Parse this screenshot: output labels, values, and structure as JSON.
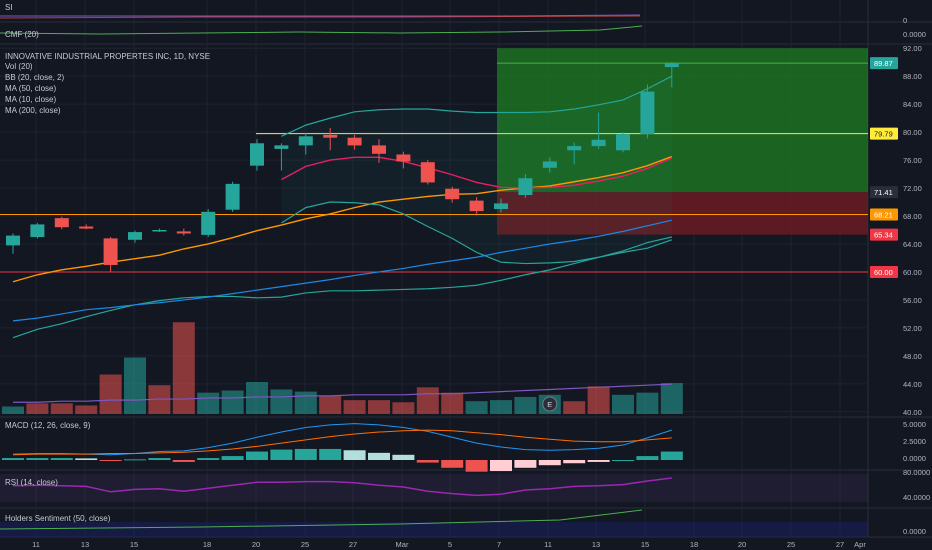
{
  "symbol": "INNOVATIVE INDUSTRIAL PROPERTES INC, 1D, NYSE",
  "indicators": {
    "si": "SI",
    "cmf": "CMF (20)",
    "vol": "Vol (20)",
    "bb": "BB (20, close, 2)",
    "ma50": "MA (50, close)",
    "ma10": "MA (10, close)",
    "ma200": "MA (200, close)",
    "macd": "MACD (12, 26, close, 9)",
    "rsi": "RSI (14, close)",
    "holders": "Holders Sentiment (50, close)"
  },
  "earnings_marker": "E",
  "colors": {
    "background": "#131722",
    "up": "#26a69a",
    "down": "#ef5350",
    "bb_basis": "#e91e63",
    "bb_band": "#26a69a",
    "ma50": "#ff9800",
    "ma10": "#1e88e5",
    "vol_ma": "#7e57c2",
    "profit_zone": "#1e7d22",
    "loss_zone": "#6b1b23",
    "resistance_line": "#ffeb3b",
    "entry_line": "#ff9800",
    "support_line": "#f23645"
  },
  "chart_data": {
    "type": "candlestick",
    "title": "INNOVATIVE INDUSTRIAL PROPERTES INC, 1D, NYSE",
    "x_tick_labels": [
      "11",
      "13",
      "15",
      "18",
      "20",
      "25",
      "27",
      "Mar",
      "5",
      "7",
      "11",
      "13",
      "15",
      "18",
      "20",
      "25",
      "27",
      "Apr"
    ],
    "y_ticks": [
      40,
      44,
      48,
      52,
      56,
      60,
      64,
      68,
      72,
      76,
      80,
      84,
      88,
      92
    ],
    "ylim": [
      39.4,
      92.6
    ],
    "candles": [
      {
        "o": 63.8,
        "h": 65.5,
        "l": 62.6,
        "c": 65.2
      },
      {
        "o": 65.0,
        "h": 67.0,
        "l": 64.8,
        "c": 66.8
      },
      {
        "o": 67.7,
        "h": 67.9,
        "l": 66.1,
        "c": 66.4
      },
      {
        "o": 66.5,
        "h": 66.8,
        "l": 66.1,
        "c": 66.2
      },
      {
        "o": 64.8,
        "h": 65.0,
        "l": 60.0,
        "c": 61.0
      },
      {
        "o": 64.6,
        "h": 65.9,
        "l": 64.2,
        "c": 65.7
      },
      {
        "o": 66.0,
        "h": 66.2,
        "l": 65.7,
        "c": 66.0
      },
      {
        "o": 65.8,
        "h": 66.2,
        "l": 65.2,
        "c": 65.5
      },
      {
        "o": 65.3,
        "h": 69.0,
        "l": 65.0,
        "c": 68.6
      },
      {
        "o": 68.9,
        "h": 72.9,
        "l": 68.6,
        "c": 72.6
      },
      {
        "o": 75.2,
        "h": 79.0,
        "l": 74.5,
        "c": 78.4
      },
      {
        "o": 77.6,
        "h": 78.4,
        "l": 74.5,
        "c": 78.1
      },
      {
        "o": 78.1,
        "h": 79.9,
        "l": 76.8,
        "c": 79.4
      },
      {
        "o": 79.6,
        "h": 80.6,
        "l": 77.4,
        "c": 79.2
      },
      {
        "o": 79.2,
        "h": 79.6,
        "l": 77.5,
        "c": 78.1
      },
      {
        "o": 78.1,
        "h": 79.0,
        "l": 75.6,
        "c": 76.9
      },
      {
        "o": 76.8,
        "h": 77.2,
        "l": 74.8,
        "c": 75.8
      },
      {
        "o": 75.7,
        "h": 76.0,
        "l": 72.5,
        "c": 72.8
      },
      {
        "o": 71.9,
        "h": 72.2,
        "l": 69.9,
        "c": 70.4
      },
      {
        "o": 70.2,
        "h": 70.7,
        "l": 68.1,
        "c": 68.7
      },
      {
        "o": 69.0,
        "h": 70.5,
        "l": 68.5,
        "c": 69.8
      },
      {
        "o": 71.0,
        "h": 74.0,
        "l": 70.6,
        "c": 73.4
      },
      {
        "o": 74.9,
        "h": 76.4,
        "l": 74.2,
        "c": 75.8
      },
      {
        "o": 77.4,
        "h": 78.5,
        "l": 75.4,
        "c": 78.0
      },
      {
        "o": 78.0,
        "h": 82.8,
        "l": 77.6,
        "c": 78.9
      },
      {
        "o": 77.4,
        "h": 80.0,
        "l": 77.1,
        "c": 79.7
      },
      {
        "o": 79.7,
        "h": 86.8,
        "l": 79.1,
        "c": 85.8
      },
      {
        "o": 89.3,
        "h": 90.0,
        "l": 86.4,
        "c": 89.8
      }
    ],
    "volume": [
      {
        "v": 0.7,
        "up": true
      },
      {
        "v": 1.0,
        "up": false
      },
      {
        "v": 1.0,
        "up": false
      },
      {
        "v": 0.8,
        "up": false
      },
      {
        "v": 3.7,
        "up": false
      },
      {
        "v": 5.3,
        "up": true
      },
      {
        "v": 2.7,
        "up": false
      },
      {
        "v": 8.6,
        "up": false
      },
      {
        "v": 2.0,
        "up": true
      },
      {
        "v": 2.2,
        "up": true
      },
      {
        "v": 3.0,
        "up": true
      },
      {
        "v": 2.3,
        "up": true
      },
      {
        "v": 2.1,
        "up": true
      },
      {
        "v": 1.7,
        "up": false
      },
      {
        "v": 1.3,
        "up": false
      },
      {
        "v": 1.3,
        "up": false
      },
      {
        "v": 1.1,
        "up": false
      },
      {
        "v": 2.5,
        "up": false
      },
      {
        "v": 2.0,
        "up": false
      },
      {
        "v": 1.2,
        "up": true
      },
      {
        "v": 1.3,
        "up": true
      },
      {
        "v": 1.6,
        "up": true
      },
      {
        "v": 1.8,
        "up": true
      },
      {
        "v": 1.2,
        "up": false
      },
      {
        "v": 2.6,
        "up": false
      },
      {
        "v": 1.8,
        "up": true
      },
      {
        "v": 2.0,
        "up": true
      },
      {
        "v": 2.9,
        "up": true
      }
    ],
    "vol_max": 9.0,
    "vol_ma": [
      1.1,
      1.1,
      1.2,
      1.2,
      1.3,
      1.3,
      1.4,
      1.4,
      1.5,
      1.5,
      1.6,
      1.6,
      1.7,
      1.7,
      1.8,
      1.8,
      1.8,
      1.9,
      1.9,
      2.0,
      2.1,
      2.2,
      2.3,
      2.4,
      2.5,
      2.6,
      2.7,
      2.8
    ],
    "bb_basis": [
      null,
      null,
      null,
      null,
      null,
      null,
      null,
      null,
      null,
      null,
      null,
      73.2,
      75.1,
      76.0,
      76.4,
      76.4,
      75.8,
      74.9,
      73.9,
      72.8,
      72.1,
      72.0,
      72.1,
      72.4,
      73.0,
      73.7,
      74.8,
      76.3
    ],
    "bb_upper": [
      null,
      null,
      null,
      null,
      null,
      null,
      null,
      null,
      null,
      null,
      null,
      79.4,
      81.0,
      82.0,
      82.9,
      83.2,
      83.3,
      83.3,
      83.0,
      82.8,
      82.8,
      82.8,
      82.9,
      83.3,
      83.9,
      84.6,
      86.2,
      88.0
    ],
    "bb_lower": [
      null,
      null,
      null,
      null,
      null,
      null,
      null,
      null,
      null,
      null,
      null,
      67.0,
      69.2,
      70.0,
      69.9,
      69.6,
      68.3,
      66.5,
      64.8,
      62.8,
      61.4,
      61.2,
      61.3,
      61.5,
      62.1,
      62.8,
      63.4,
      64.6
    ],
    "ma_orange": [
      58.6,
      59.6,
      60.3,
      60.8,
      61.4,
      61.9,
      62.4,
      63.3,
      64.0,
      64.9,
      65.9,
      66.7,
      67.6,
      68.3,
      69.2,
      70.0,
      70.4,
      70.8,
      71.1,
      71.2,
      71.7,
      72.0,
      72.3,
      72.9,
      73.5,
      74.2,
      75.2,
      76.5
    ],
    "ma_blue": [
      53.0,
      53.4,
      54.0,
      54.6,
      54.9,
      55.3,
      55.6,
      56.0,
      56.4,
      56.9,
      57.4,
      57.9,
      58.4,
      58.9,
      59.5,
      60.0,
      60.5,
      61.1,
      61.6,
      62.1,
      62.8,
      63.4,
      64.0,
      64.5,
      65.1,
      65.8,
      66.6,
      67.4
    ],
    "ma_teal": [
      50.6,
      51.8,
      52.6,
      53.6,
      54.5,
      55.3,
      55.9,
      56.3,
      56.5,
      56.5,
      56.3,
      56.4,
      57.0,
      57.3,
      57.3,
      57.4,
      57.5,
      57.6,
      57.8,
      58.1,
      58.8,
      59.6,
      60.3,
      61.2,
      62.1,
      63.0,
      64.2,
      65.0
    ],
    "levels": {
      "resistance": 79.79,
      "entry": 68.21,
      "stop": 65.34,
      "support": 60.0,
      "target": 89.87,
      "target_top": 92.0,
      "entry_top": 71.41
    },
    "price_tags": [
      "92.00",
      "89.87",
      "79.79",
      "71.41",
      "68.21",
      "65.34",
      "60.00"
    ],
    "macd_ticks": [
      "5.0000",
      "2.5000",
      "0.0000"
    ],
    "macd_hist": [
      0.3,
      0.3,
      0.3,
      0.25,
      -0.1,
      0.1,
      0.3,
      -0.3,
      0.3,
      0.6,
      1.3,
      1.6,
      1.7,
      1.7,
      1.5,
      1.1,
      0.8,
      -0.4,
      -1.2,
      -1.8,
      -1.7,
      -1.2,
      -0.8,
      -0.5,
      -0.3,
      0.0,
      0.6,
      1.3
    ],
    "macd_line": [
      0.9,
      1.0,
      1.0,
      0.9,
      0.8,
      1.0,
      1.3,
      1.4,
      1.9,
      2.6,
      3.5,
      4.3,
      5.0,
      5.4,
      5.6,
      5.4,
      5.0,
      4.4,
      3.5,
      2.6,
      2.0,
      1.6,
      1.5,
      1.6,
      1.8,
      2.3,
      3.4,
      4.6
    ],
    "macd_signal": [
      0.8,
      0.9,
      0.9,
      0.9,
      1.0,
      1.0,
      1.1,
      1.2,
      1.4,
      1.7,
      2.1,
      2.6,
      3.1,
      3.6,
      4.0,
      4.3,
      4.5,
      4.6,
      4.5,
      4.2,
      3.9,
      3.5,
      3.2,
      2.9,
      2.8,
      2.8,
      3.1,
      3.4
    ],
    "rsi_ticks": [
      "80.0000",
      "40.0000"
    ],
    "rsi": [
      62,
      63,
      62,
      61,
      52,
      56,
      57,
      53,
      58,
      63,
      68,
      68,
      69,
      69,
      67,
      63,
      60,
      53,
      49,
      46,
      48,
      55,
      57,
      61,
      62,
      64,
      70,
      75
    ],
    "holders_ticks": [
      "0.0000"
    ],
    "si_ticks": [
      "0"
    ],
    "cmf_ticks": [
      "0.0000"
    ]
  }
}
